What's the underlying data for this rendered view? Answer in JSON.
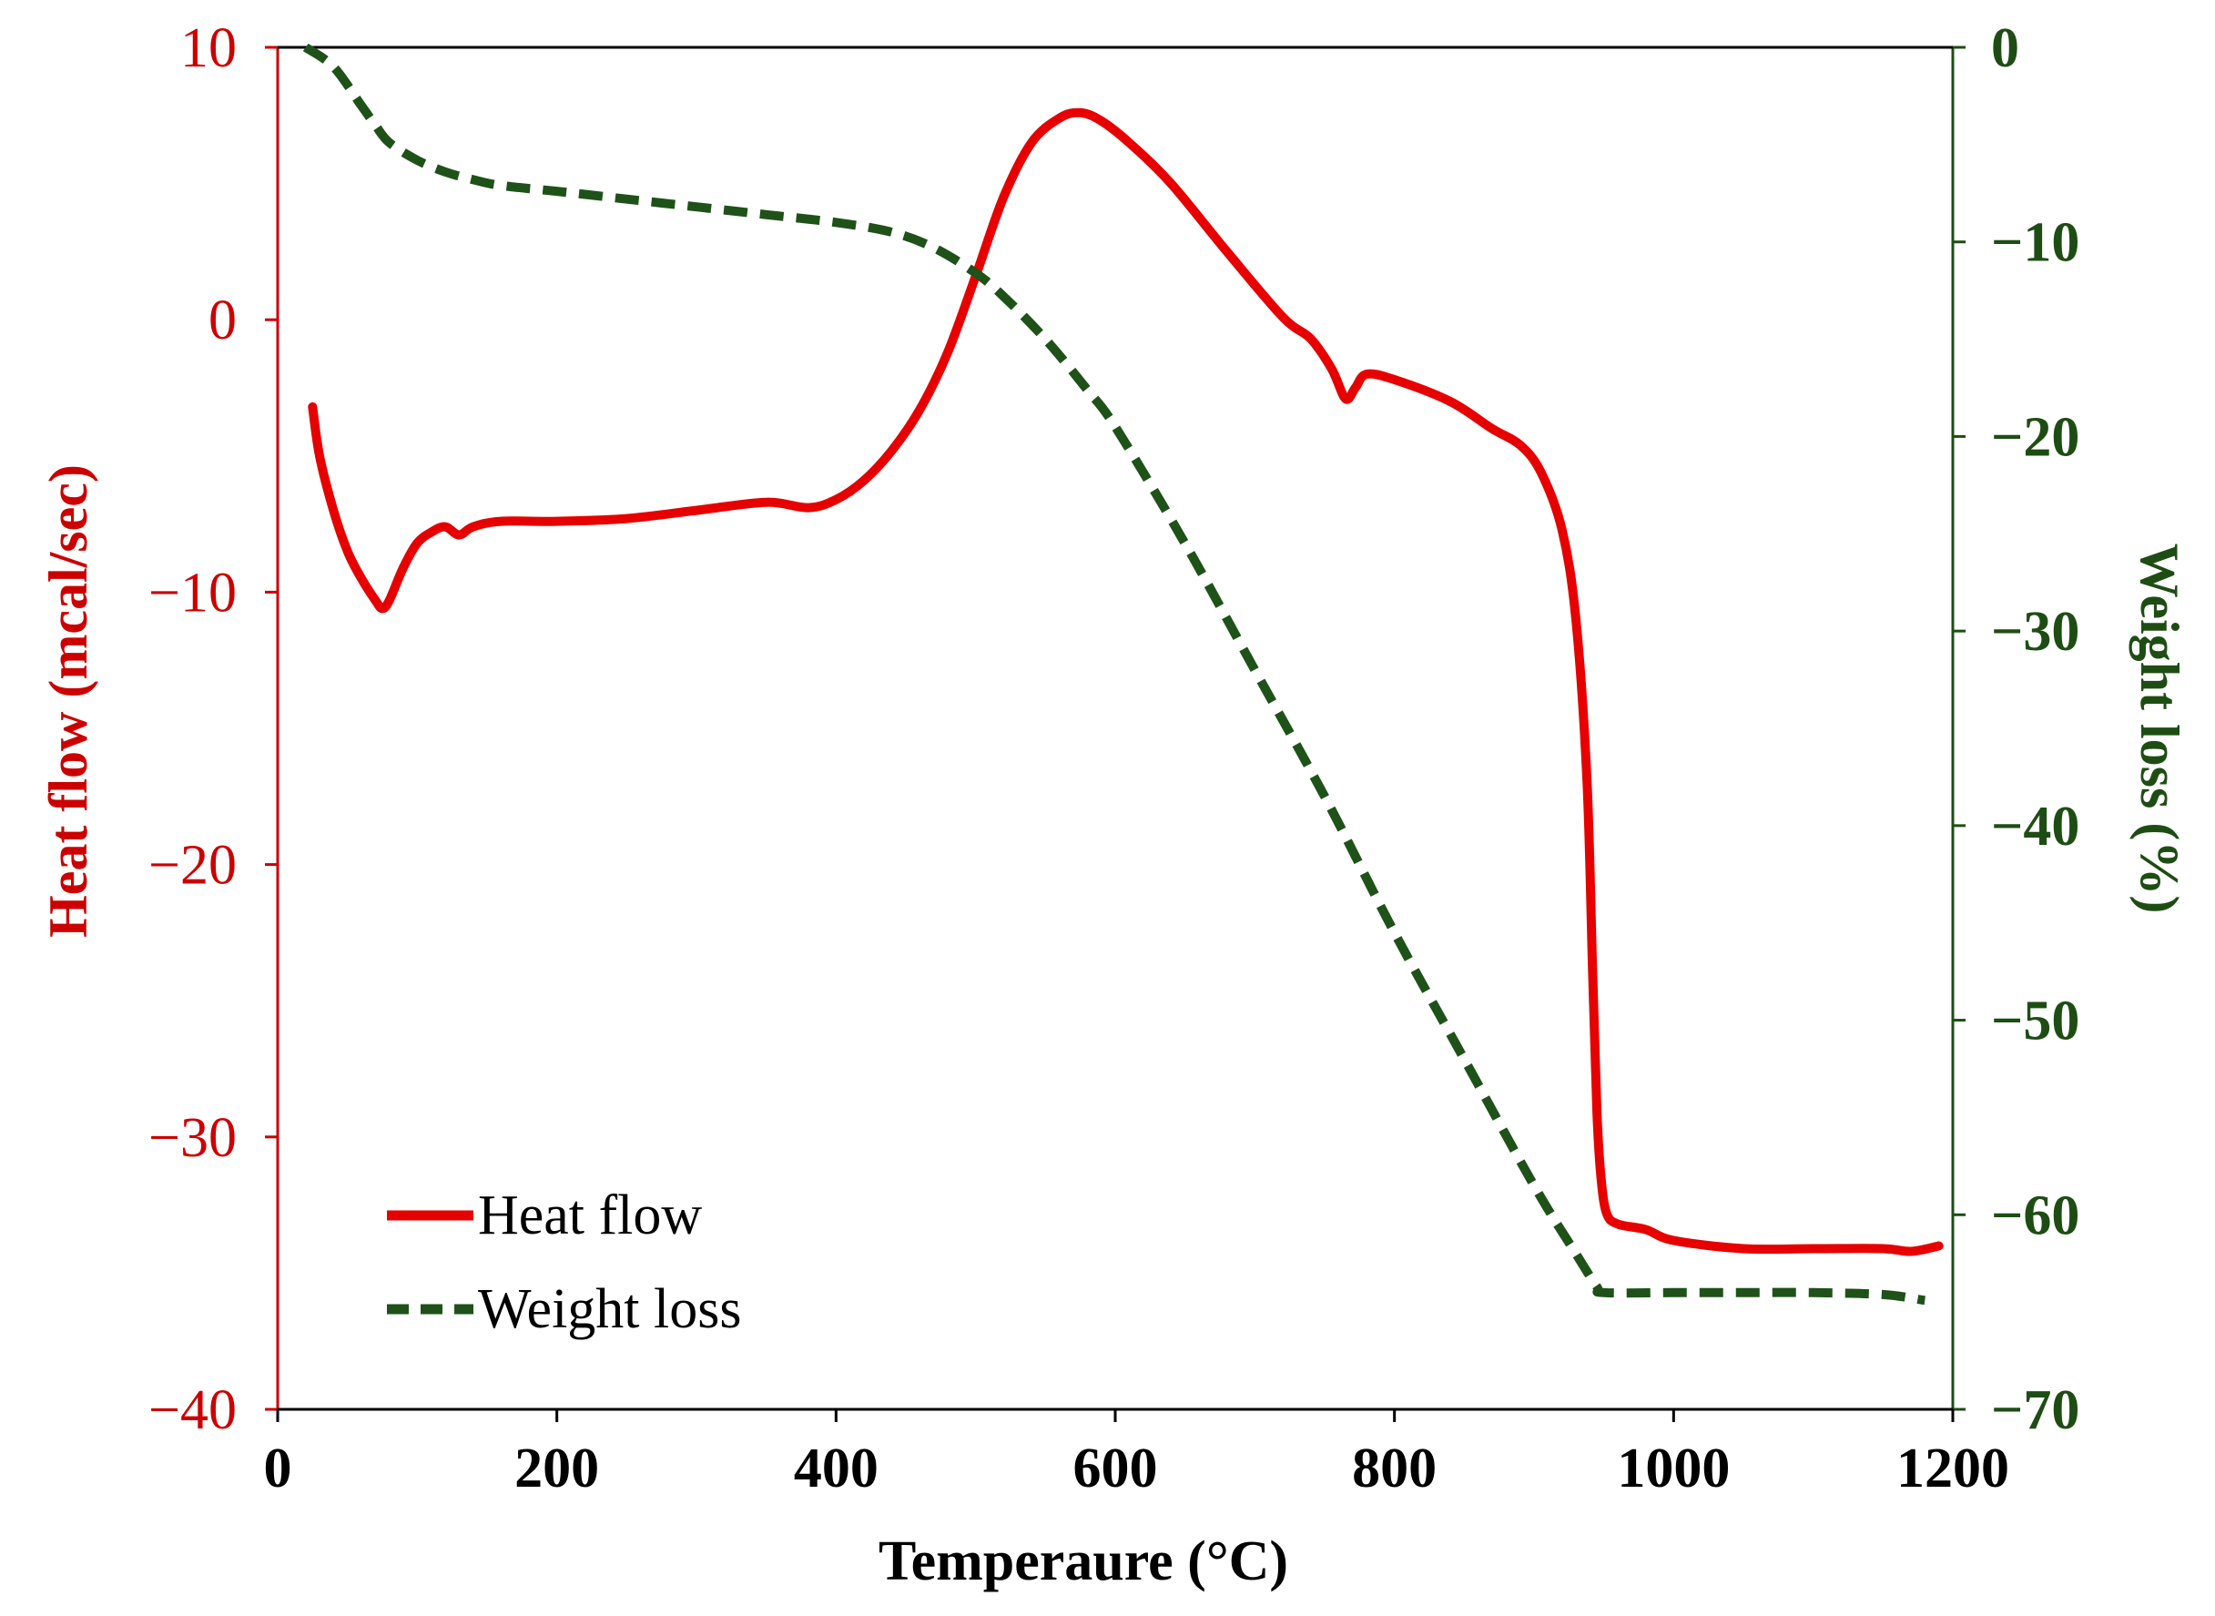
{
  "chart_data": {
    "type": "line",
    "title": "",
    "xlabel": "Temperaure (°C)",
    "ylabel": "Heat flow (mcal/sec)",
    "y2label": "Weight loss (%)",
    "xlim": [
      0,
      1200
    ],
    "ylim": [
      -40,
      10
    ],
    "y2lim": [
      -70,
      0
    ],
    "xticks": [
      "0",
      "200",
      "400",
      "600",
      "800",
      "1000",
      "1200"
    ],
    "yticks": [
      "10",
      "0",
      "−10",
      "−20",
      "−30",
      "−40"
    ],
    "yticks_values": [
      10,
      0,
      -10,
      -20,
      -30,
      -40
    ],
    "y2ticks": [
      "0",
      "−10",
      "−20",
      "−30",
      "−40",
      "−50",
      "−60",
      "−70"
    ],
    "y2ticks_values": [
      0,
      -10,
      -20,
      -30,
      -40,
      -50,
      -60,
      -70
    ],
    "xticks_values": [
      0,
      200,
      400,
      600,
      800,
      1000,
      1200
    ],
    "grid": false,
    "legend_position": "bottom-left",
    "series": [
      {
        "name": "Heat flow",
        "axis": "left",
        "color": "#e60000",
        "style": "solid",
        "x": [
          25,
          30,
          40,
          50,
          60,
          70,
          75,
          80,
          90,
          100,
          110,
          120,
          130,
          140,
          160,
          200,
          250,
          300,
          350,
          380,
          400,
          420,
          440,
          460,
          480,
          500,
          520,
          540,
          560,
          575,
          590,
          610,
          640,
          680,
          720,
          740,
          755,
          765,
          772,
          780,
          800,
          840,
          870,
          890,
          905,
          920,
          930,
          938,
          942,
          945,
          948,
          952,
          960,
          980,
          1000,
          1050,
          1100,
          1150,
          1170,
          1190
        ],
        "values": [
          -3.2,
          -5.0,
          -7.0,
          -8.5,
          -9.5,
          -10.3,
          -10.6,
          -10.3,
          -9.1,
          -8.2,
          -7.8,
          -7.6,
          -7.9,
          -7.6,
          -7.4,
          -7.4,
          -7.3,
          -7.0,
          -6.7,
          -6.9,
          -6.6,
          -5.9,
          -4.8,
          -3.3,
          -1.2,
          1.6,
          4.5,
          6.5,
          7.4,
          7.6,
          7.3,
          6.5,
          5.0,
          2.5,
          0.1,
          -0.7,
          -1.8,
          -2.9,
          -2.5,
          -2.0,
          -2.2,
          -3.0,
          -4.0,
          -4.6,
          -5.6,
          -7.7,
          -11.0,
          -17.0,
          -24.0,
          -29.0,
          -31.5,
          -32.8,
          -33.2,
          -33.4,
          -33.8,
          -34.1,
          -34.1,
          -34.1,
          -34.2,
          -34.0
        ]
      },
      {
        "name": "Weight loss",
        "axis": "right",
        "color": "#1e5218",
        "style": "dashed",
        "x": [
          20,
          40,
          60,
          70,
          80,
          100,
          120,
          140,
          160,
          200,
          250,
          300,
          350,
          400,
          440,
          470,
          500,
          520,
          550,
          580,
          600,
          650,
          700,
          750,
          800,
          850,
          900,
          930,
          945,
          950,
          1000,
          1050,
          1100,
          1150,
          1180
        ],
        "values": [
          0,
          -1.0,
          -3.0,
          -4.0,
          -4.9,
          -5.8,
          -6.4,
          -6.8,
          -7.1,
          -7.4,
          -7.8,
          -8.2,
          -8.6,
          -9.0,
          -9.5,
          -10.3,
          -11.6,
          -12.8,
          -15.0,
          -17.6,
          -19.5,
          -25.5,
          -32.0,
          -38.5,
          -45.5,
          -52.0,
          -58.5,
          -62.0,
          -63.7,
          -64.0,
          -64.0,
          -64.0,
          -64.0,
          -64.1,
          -64.4
        ]
      }
    ]
  }
}
